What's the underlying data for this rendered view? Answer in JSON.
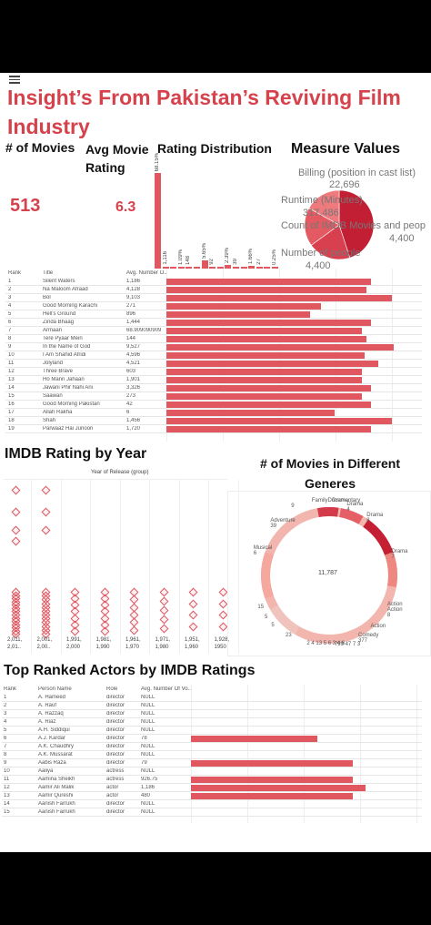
{
  "dashboard": {
    "title": "Insight’s From Pakistan’s Reviving Film Industry",
    "menu_icon": "hamburger-menu-icon"
  },
  "kpis": {
    "movies_title": "# of Movies",
    "movies_value": "513",
    "rating_title": "Avg Movie Rating",
    "rating_value": "6.3"
  },
  "distribution": {
    "title": "Rating Distribution",
    "bars": [
      {
        "label": "68.15%",
        "value": 68.15
      },
      {
        "label": "1,116",
        "value": 1.2
      },
      {
        "label": "",
        "value": 0.5
      },
      {
        "label": "1.09%",
        "value": 1.09
      },
      {
        "label": "148",
        "value": 1.5
      },
      {
        "label": "",
        "value": 0.5
      },
      {
        "label": "5.65%",
        "value": 5.65
      },
      {
        "label": "92",
        "value": 0.9
      },
      {
        "label": "",
        "value": 0.3
      },
      {
        "label": "2.39%",
        "value": 2.39
      },
      {
        "label": "39",
        "value": 0.6
      },
      {
        "label": "",
        "value": 0.3
      },
      {
        "label": "1.66%",
        "value": 1.66
      },
      {
        "label": "27",
        "value": 0.4
      },
      {
        "label": "",
        "value": 0.1
      },
      {
        "label": "0.25%",
        "value": 0.25
      }
    ]
  },
  "measures": {
    "title": "Measure Values",
    "items": [
      {
        "name": "Billing (position in cast list)",
        "value": "22,696"
      },
      {
        "name": "Runtime (Minutes)",
        "value": "317,486"
      },
      {
        "name": "Count of IMDB Movies and peop",
        "value": "4,400"
      },
      {
        "name": "Number of people",
        "value": "4,400"
      }
    ],
    "slices": [
      {
        "value": 317486,
        "color": "#c21f35"
      },
      {
        "value": 22696,
        "color": "#d9404f"
      },
      {
        "value": 4400,
        "color": "#e35a62"
      },
      {
        "value": 4400,
        "color": "#ee7a7d"
      }
    ]
  },
  "movies_table": {
    "headers": [
      "Rank",
      "Title",
      "Avg. Number O.."
    ],
    "rows": [
      {
        "rank": "1",
        "title": "Silent Waters",
        "value": "1,186",
        "bar": 0.9
      },
      {
        "rank": "2",
        "title": "Na Maloom Afraad",
        "value": "4,128",
        "bar": 0.88
      },
      {
        "rank": "3",
        "title": "Bol",
        "value": "9,103",
        "bar": 0.99
      },
      {
        "rank": "4",
        "title": "Good Morning Karachi",
        "value": "271",
        "bar": 0.68
      },
      {
        "rank": "5",
        "title": "Hell's Ground",
        "value": "896",
        "bar": 0.63
      },
      {
        "rank": "6",
        "title": "Zinda Bhaag",
        "value": "1,444",
        "bar": 0.9
      },
      {
        "rank": "7",
        "title": "Armaan",
        "value": "68.909090909",
        "bar": 0.86
      },
      {
        "rank": "8",
        "title": "Tere Pyaar Mein",
        "value": "144",
        "bar": 0.88
      },
      {
        "rank": "9",
        "title": "In the Name of God",
        "value": "9,527",
        "bar": 1.0
      },
      {
        "rank": "10",
        "title": "I Am Shahid Afridi",
        "value": "4,596",
        "bar": 0.87
      },
      {
        "rank": "11",
        "title": "Jolyland",
        "value": "4,521",
        "bar": 0.93
      },
      {
        "rank": "12",
        "title": "Three Brave",
        "value": "603",
        "bar": 0.86
      },
      {
        "rank": "13",
        "title": "Ho Mann Jahaan",
        "value": "1,901",
        "bar": 0.86
      },
      {
        "rank": "14",
        "title": "Jawani Phir Nahi Ani",
        "value": "3,326",
        "bar": 0.9
      },
      {
        "rank": "15",
        "title": "Saawan",
        "value": "273",
        "bar": 0.86
      },
      {
        "rank": "16",
        "title": "Good Morning Pakistan",
        "value": "42",
        "bar": 0.9
      },
      {
        "rank": "17",
        "title": "Allah Rakha",
        "value": "6",
        "bar": 0.74
      },
      {
        "rank": "18",
        "title": "Shah",
        "value": "1,456",
        "bar": 0.99
      },
      {
        "rank": "19",
        "title": "Parwaaz Hai Junoon",
        "value": "1,720",
        "bar": 0.9
      }
    ]
  },
  "imdb_by_year": {
    "title": "IMDB Rating by Year",
    "axis_title": "Year of Release (group)",
    "columns": [
      {
        "label": "2,011,\n2,01..",
        "count": 14
      },
      {
        "label": "2,001,\n2,00..",
        "count": 12
      },
      {
        "label": "1,991,\n2,000",
        "count": 7
      },
      {
        "label": "1,981,\n1,990",
        "count": 7
      },
      {
        "label": "1,961,\n1,970",
        "count": 6
      },
      {
        "label": "1,971,\n1,980",
        "count": 5
      },
      {
        "label": "1,951,\n1,960",
        "count": 4
      },
      {
        "label": "1,928,\n1950",
        "count": 4
      }
    ]
  },
  "genres": {
    "title": "# of Movies in Different Generes",
    "center_value": "11,787",
    "labels": [
      {
        "text": "Drama\n4",
        "ang": 200
      },
      {
        "text": "Drama\n8",
        "ang": 218
      },
      {
        "text": "Drama",
        "ang": 188
      },
      {
        "text": "FamilyDocumentary",
        "ang": 172
      },
      {
        "text": "9",
        "ang": 155
      },
      {
        "text": "Adventure\n39",
        "ang": 135
      },
      {
        "text": "Musical\n6",
        "ang": 110
      },
      {
        "text": "Drama\n7",
        "ang": 253
      },
      {
        "text": "Action\nAction\n8",
        "ang": 296
      },
      {
        "text": "15",
        "ang": 62
      },
      {
        "text": "5",
        "ang": 52
      },
      {
        "text": "5",
        "ang": 44
      },
      {
        "text": "Action",
        "ang": 318
      },
      {
        "text": "Comedy\n377",
        "ang": 330
      },
      {
        "text": "799 47 7 3",
        "ang": 350
      },
      {
        "text": "2 4 13 5 6 3 4 6",
        "ang": 12
      },
      {
        "text": "23",
        "ang": 30
      }
    ],
    "segments": [
      {
        "value": 377,
        "color": "#f1b7b0"
      },
      {
        "value": 39,
        "color": "#d33a4a"
      },
      {
        "value": 9,
        "color": "#e2545e"
      },
      {
        "value": 8,
        "color": "#ea6d6f"
      },
      {
        "value": 8,
        "color": "#ef8680"
      },
      {
        "value": 7,
        "color": "#f39f96"
      },
      {
        "value": 6,
        "color": "#c41f33"
      },
      {
        "value": 4,
        "color": "#e04a55"
      },
      {
        "value": 23,
        "color": "#f5c3ba"
      }
    ]
  },
  "actors": {
    "title": "Top Ranked Actors  by IMDB Ratings",
    "headers": [
      "Rank",
      "Person Name",
      "Role",
      "Avg. Number Of Vo.."
    ],
    "rows": [
      {
        "rank": "1",
        "name": "A. Hameed",
        "role": "director",
        "value": "NULL",
        "bar": 0
      },
      {
        "rank": "2",
        "name": "A. Rauf",
        "role": "director",
        "value": "NULL",
        "bar": 0
      },
      {
        "rank": "3",
        "name": "A. Razzaq",
        "role": "director",
        "value": "NULL",
        "bar": 0
      },
      {
        "rank": "4",
        "name": "A. Riaz",
        "role": "director",
        "value": "NULL",
        "bar": 0
      },
      {
        "rank": "5",
        "name": "A.H. Siddiqui",
        "role": "director",
        "value": "NULL",
        "bar": 0
      },
      {
        "rank": "6",
        "name": "A.J. Kardar",
        "role": "director",
        "value": "78",
        "bar": 0.58
      },
      {
        "rank": "7",
        "name": "A.K. Chaudhry",
        "role": "director",
        "value": "NULL",
        "bar": 0
      },
      {
        "rank": "8",
        "name": "A.K. Mussarat",
        "role": "director",
        "value": "NULL",
        "bar": 0
      },
      {
        "rank": "9",
        "name": "Aabis Raza",
        "role": "director",
        "value": "79",
        "bar": 0.74
      },
      {
        "rank": "10",
        "name": "Aaliya",
        "role": "actress",
        "value": "NULL",
        "bar": 0
      },
      {
        "rank": "11",
        "name": "Aamina Sheikh",
        "role": "actress",
        "value": "926.75",
        "bar": 0.74
      },
      {
        "rank": "12",
        "name": "Aamir Ali Malik",
        "role": "actor",
        "value": "1,186",
        "bar": 0.8
      },
      {
        "rank": "13",
        "name": "Aamir Qureshi",
        "role": "actor",
        "value": "480",
        "bar": 0.74
      },
      {
        "rank": "14",
        "name": "Aanish Farrukh",
        "role": "director",
        "value": "NULL",
        "bar": 0
      },
      {
        "rank": "15",
        "name": "Aanish Farrukh",
        "role": "director",
        "value": "NULL",
        "bar": 0
      }
    ]
  }
}
